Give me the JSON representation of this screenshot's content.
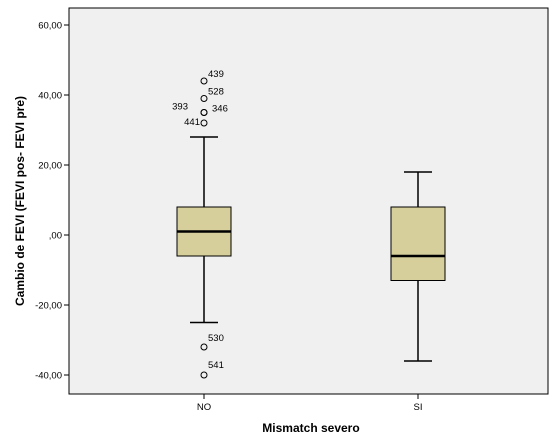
{
  "chart_data": {
    "type": "boxplot",
    "title": "",
    "xlabel": "Mismatch severo",
    "ylabel": "Cambio de FEVI (FEVI pos- FEVI pre)",
    "ylim": [
      -45,
      65
    ],
    "yticks": [
      -40,
      -20,
      0,
      20,
      40,
      60
    ],
    "ytick_labels": [
      "-40,00",
      "-20,00",
      ",00",
      "20,00",
      "40,00",
      "60,00"
    ],
    "grid": false,
    "colors": {
      "box_fill": "#d6cf9c",
      "plot_background": "#f0f0f0",
      "axis": "#000000"
    },
    "groups": [
      {
        "category": "NO",
        "whisker_low": -25,
        "q1": -6,
        "median": 1,
        "q3": 8,
        "whisker_high": 28,
        "outliers": [
          {
            "value": 44,
            "label": "439"
          },
          {
            "value": 39,
            "label": "528"
          },
          {
            "value": 35,
            "label": "393"
          },
          {
            "value": 35,
            "label": "346"
          },
          {
            "value": 32,
            "label": "441"
          },
          {
            "value": -32,
            "label": "530"
          },
          {
            "value": -40,
            "label": "541"
          }
        ]
      },
      {
        "category": "SI",
        "whisker_low": -36,
        "q1": -13,
        "median": -6,
        "q3": 8,
        "whisker_high": 18,
        "outliers": []
      }
    ]
  }
}
